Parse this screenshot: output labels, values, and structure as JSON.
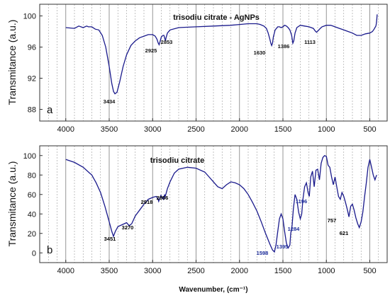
{
  "figure": {
    "xlabel": "Wavenumber, (cm⁻¹)",
    "line_color": "#1a1a8c"
  },
  "chart_data": [
    {
      "panel": "a",
      "type": "line",
      "title": "trisodiu citrate - AgNPs",
      "ylabel": "Transmitance (a.u.)",
      "xlim": [
        4300,
        300
      ],
      "ylim": [
        86.5,
        101.5
      ],
      "x_ticks": [
        4000,
        3500,
        3000,
        2500,
        2000,
        1500,
        1000,
        500
      ],
      "y_ticks": [
        88,
        92,
        96,
        100
      ],
      "grid": "dashed vertical lines, solid line every 500 cm-1",
      "series": [
        {
          "x": [
            4000,
            3900,
            3850,
            3800,
            3760,
            3740,
            3700,
            3660,
            3620,
            3580,
            3540,
            3500,
            3470,
            3450,
            3434,
            3410,
            3380,
            3340,
            3300,
            3250,
            3200,
            3150,
            3100,
            3050,
            3000,
            2970,
            2950,
            2935,
            2925,
            2915,
            2900,
            2880,
            2870,
            2860,
            2853,
            2845,
            2830,
            2800,
            2700,
            2500,
            2300,
            2100,
            2000,
            1900,
            1800,
            1760,
            1720,
            1690,
            1670,
            1650,
            1640,
            1630,
            1620,
            1610,
            1590,
            1560,
            1540,
            1520,
            1500,
            1480,
            1460,
            1440,
            1420,
            1400,
            1386,
            1375,
            1360,
            1340,
            1300,
            1250,
            1200,
            1150,
            1130,
            1113,
            1095,
            1070,
            1050,
            1000,
            950,
            900,
            850,
            800,
            750,
            700,
            650,
            600,
            550,
            500,
            470,
            450,
            440,
            430,
            425,
            420,
            415
          ],
          "y": [
            98.5,
            98.4,
            98.7,
            98.5,
            98.7,
            98.6,
            98.6,
            98.3,
            98.2,
            97.5,
            96.0,
            93.5,
            91.3,
            90.3,
            90.0,
            90.2,
            91.5,
            93.5,
            95.0,
            96.2,
            96.8,
            97.2,
            97.4,
            97.6,
            97.6,
            97.4,
            97.0,
            96.5,
            96.3,
            96.7,
            97.3,
            97.5,
            97.5,
            97.1,
            96.8,
            97.2,
            97.8,
            98.2,
            98.5,
            98.6,
            98.7,
            98.8,
            98.9,
            99.0,
            99.0,
            98.9,
            98.7,
            98.4,
            97.8,
            97.0,
            96.5,
            96.2,
            96.5,
            97.3,
            98.2,
            98.6,
            98.6,
            98.5,
            98.6,
            98.8,
            98.7,
            98.5,
            98.2,
            97.5,
            96.5,
            96.8,
            97.8,
            98.5,
            98.8,
            98.7,
            98.6,
            98.4,
            98.1,
            97.9,
            98.1,
            98.4,
            98.6,
            98.8,
            98.8,
            98.6,
            98.4,
            98.2,
            98.0,
            97.8,
            97.5,
            97.5,
            97.7,
            97.8,
            98.0,
            98.3,
            98.5,
            98.7,
            99.0,
            99.5,
            100.2
          ]
        }
      ],
      "annotations": [
        "3434",
        "2925",
        "2853",
        "1630",
        "1386",
        "1113"
      ]
    },
    {
      "panel": "b",
      "type": "line",
      "title": "trisodiu citrate",
      "ylabel": "Transmitance (a.u.)",
      "xlim": [
        4300,
        300
      ],
      "ylim": [
        -10,
        110
      ],
      "x_ticks": [
        4000,
        3500,
        3000,
        2500,
        2000,
        1500,
        1000,
        500
      ],
      "y_ticks": [
        0,
        20,
        40,
        60,
        80,
        100
      ],
      "grid": "dashed vertical lines, solid line every 500 cm-1",
      "series": [
        {
          "x": [
            4000,
            3900,
            3800,
            3700,
            3650,
            3600,
            3550,
            3500,
            3470,
            3451,
            3430,
            3400,
            3350,
            3300,
            3270,
            3240,
            3200,
            3150,
            3100,
            3050,
            3000,
            2960,
            2940,
            2930,
            2918,
            2905,
            2890,
            2875,
            2870,
            2862,
            2856,
            2845,
            2830,
            2800,
            2750,
            2700,
            2600,
            2500,
            2400,
            2350,
            2300,
            2250,
            2200,
            2150,
            2100,
            2050,
            2000,
            1950,
            1900,
            1850,
            1800,
            1750,
            1700,
            1650,
            1620,
            1598,
            1580,
            1560,
            1540,
            1520,
            1500,
            1480,
            1460,
            1440,
            1420,
            1410,
            1395,
            1380,
            1360,
            1340,
            1320,
            1300,
            1284,
            1270,
            1250,
            1230,
            1210,
            1196,
            1180,
            1160,
            1140,
            1120,
            1100,
            1080,
            1060,
            1040,
            1020,
            1000,
            980,
            960,
            940,
            920,
            900,
            880,
            860,
            840,
            820,
            800,
            780,
            757,
            740,
            720,
            700,
            680,
            660,
            640,
            621,
            600,
            580,
            560,
            540,
            520,
            500,
            480,
            460,
            440,
            430,
            420
          ],
          "y": [
            96,
            93,
            88,
            80,
            72,
            62,
            48,
            32,
            22,
            17,
            22,
            27,
            29,
            31,
            28,
            30,
            38,
            44,
            50,
            55,
            57,
            58,
            56,
            53,
            56,
            59,
            57,
            55,
            57,
            60,
            58,
            61,
            66,
            73,
            82,
            86,
            88,
            87,
            83,
            78,
            73,
            68,
            66,
            70,
            73,
            72,
            70,
            66,
            60,
            52,
            43,
            32,
            20,
            9,
            3,
            1,
            8,
            22,
            35,
            40,
            35,
            22,
            10,
            5,
            8,
            20,
            28,
            45,
            60,
            55,
            42,
            35,
            40,
            55,
            68,
            72,
            62,
            58,
            78,
            84,
            68,
            85,
            86,
            75,
            92,
            98,
            100,
            99,
            90,
            88,
            78,
            70,
            78,
            68,
            58,
            55,
            62,
            58,
            52,
            44,
            37,
            48,
            50,
            44,
            36,
            30,
            26,
            32,
            42,
            58,
            72,
            88,
            96,
            88,
            80,
            75,
            78,
            80
          ]
        }
      ],
      "annotations": [
        {
          "text": "3451",
          "color": "#000000"
        },
        {
          "text": "3270",
          "color": "#000000"
        },
        {
          "text": "2918",
          "color": "#000000"
        },
        {
          "text": "2856",
          "color": "#000000"
        },
        {
          "text": "1598",
          "color": "#1a2a9a"
        },
        {
          "text": "1395",
          "color": "#1a2a9a"
        },
        {
          "text": "1284",
          "color": "#1a2a9a"
        },
        {
          "text": "1196",
          "color": "#1a2a9a"
        },
        {
          "text": "757",
          "color": "#000000"
        },
        {
          "text": "621",
          "color": "#000000"
        }
      ]
    }
  ]
}
